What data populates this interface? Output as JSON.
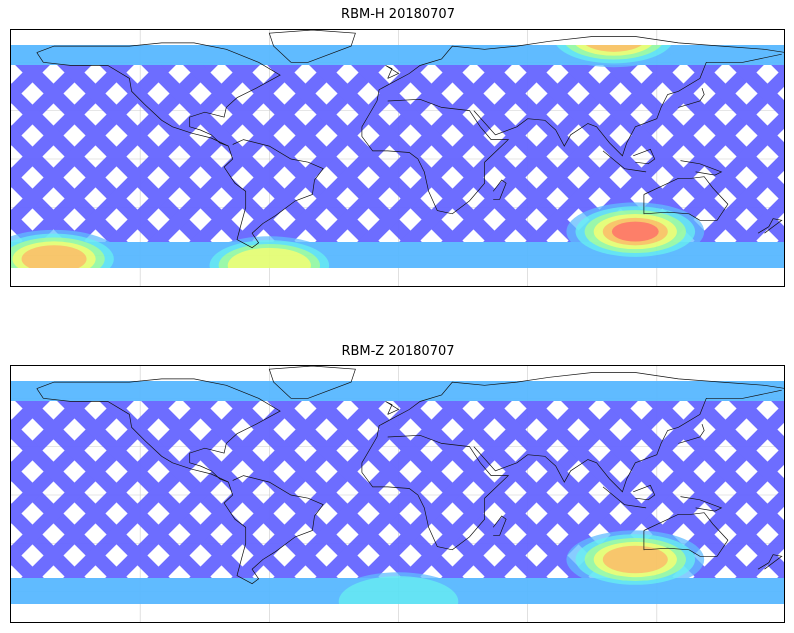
{
  "panels": [
    {
      "title": "RBM-H 20180707",
      "colormap": [
        "#6666ff",
        "#58b8ff",
        "#5ff0f0",
        "#a8ff8c",
        "#ffff66",
        "#ffb060",
        "#ff6060"
      ],
      "lat_range": [
        -80,
        80
      ],
      "lon_range": [
        -180,
        180
      ],
      "hotspots": [
        {
          "name": "north-pacific",
          "lon": 100,
          "lat": 75,
          "level": 0.75
        },
        {
          "name": "south-atlantic",
          "lon": 110,
          "lat": -45,
          "level": 0.95
        },
        {
          "name": "southern-ocean-west",
          "lon": -160,
          "lat": -62,
          "level": 0.9
        },
        {
          "name": "southern-ocean-central",
          "lon": -60,
          "lat": -66,
          "level": 0.6
        }
      ]
    },
    {
      "title": "RBM-Z 20180707",
      "colormap": [
        "#6666ff",
        "#58b8ff",
        "#5ff0f0",
        "#a8ff8c",
        "#ffff66",
        "#ffb060",
        "#ff6060"
      ],
      "lat_range": [
        -80,
        80
      ],
      "lon_range": [
        -180,
        180
      ],
      "hotspots": [
        {
          "name": "south-atlantic",
          "lon": 110,
          "lat": -40,
          "level": 0.85
        },
        {
          "name": "southern-ocean",
          "lon": 0,
          "lat": -66,
          "level": 0.4
        }
      ]
    }
  ]
}
